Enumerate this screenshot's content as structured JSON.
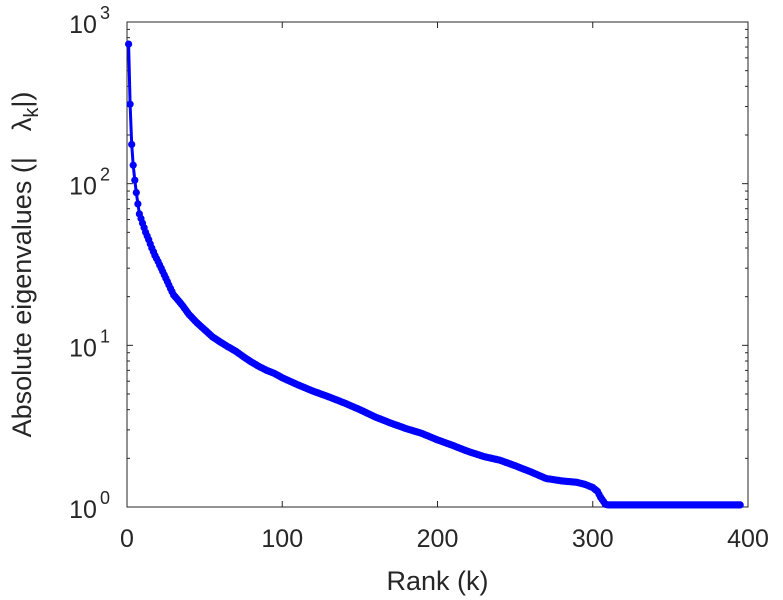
{
  "chart_data": {
    "type": "line",
    "title": "",
    "xlabel": "Rank (k)",
    "ylabel": "Absolute eigenvalues (|λk|)",
    "ylabel_parts": [
      "Absolute eigenvalues (|",
      "λ",
      "k",
      "|)"
    ],
    "xlim": [
      0,
      400
    ],
    "ylim": [
      1,
      1000
    ],
    "yscale": "log",
    "grid": false,
    "legend": "none",
    "x_ticks": [
      0,
      100,
      200,
      300,
      400
    ],
    "x_tick_labels": [
      "0",
      "100",
      "200",
      "300",
      "400"
    ],
    "y_ticks": [
      1,
      10,
      100,
      1000
    ],
    "y_tick_bases": [
      "10",
      "10",
      "10",
      "10"
    ],
    "y_tick_exponents": [
      "0",
      "1",
      "2",
      "3"
    ],
    "series": [
      {
        "color": "#0000ff",
        "marker": "circle",
        "x": [
          1,
          2,
          3,
          4,
          5,
          6,
          7,
          8,
          10,
          12,
          14,
          16,
          18,
          20,
          22,
          25,
          28,
          30,
          33,
          36,
          40,
          45,
          50,
          55,
          60,
          65,
          70,
          75,
          80,
          85,
          90,
          95,
          100,
          110,
          120,
          130,
          140,
          150,
          160,
          170,
          180,
          190,
          200,
          210,
          220,
          230,
          240,
          250,
          260,
          270,
          280,
          290,
          295,
          300,
          303,
          305,
          307,
          308,
          310,
          320,
          340,
          360,
          380,
          395
        ],
        "y": [
          730,
          310,
          175,
          130,
          105,
          88,
          75,
          65,
          57,
          50,
          45,
          40,
          36,
          33,
          30,
          26,
          22.5,
          20.5,
          19,
          17.5,
          15.5,
          13.8,
          12.5,
          11.3,
          10.5,
          9.8,
          9.2,
          8.5,
          7.9,
          7.4,
          7.0,
          6.7,
          6.3,
          5.7,
          5.2,
          4.8,
          4.4,
          4.0,
          3.6,
          3.3,
          3.05,
          2.85,
          2.6,
          2.4,
          2.2,
          2.05,
          1.95,
          1.8,
          1.65,
          1.5,
          1.45,
          1.42,
          1.38,
          1.32,
          1.25,
          1.15,
          1.08,
          1.04,
          1.03,
          1.03,
          1.03,
          1.03,
          1.03,
          1.03
        ]
      }
    ]
  }
}
